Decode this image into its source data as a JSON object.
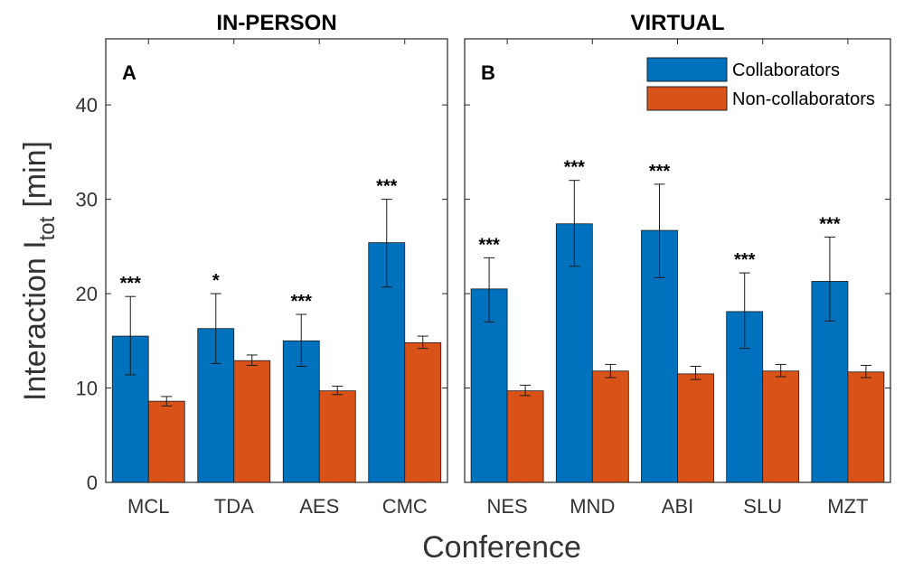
{
  "chart_data": {
    "type": "bar",
    "xlabel": "Conference",
    "ylabel": "Interaction I",
    "ylabel_sub": "tot",
    "ylabel_unit": "[min]",
    "ylim": [
      0,
      47
    ],
    "yticks": [
      "0",
      "10",
      "20",
      "30",
      "40"
    ],
    "colors": {
      "Collaborators": "#0072BD",
      "Non-collaborators": "#D95319"
    },
    "legend": {
      "placement": "top-right",
      "entries": [
        "Collaborators",
        "Non-collaborators"
      ]
    },
    "panels": [
      {
        "title": "IN-PERSON",
        "label": "A",
        "categories": [
          "MCL",
          "TDA",
          "AES",
          "CMC"
        ],
        "series": [
          {
            "name": "Collaborators",
            "values": [
              15.5,
              16.3,
              15.0,
              25.4
            ],
            "err_low": [
              11.4,
              12.6,
              12.3,
              20.7
            ],
            "err_high": [
              19.7,
              20.0,
              17.8,
              30.0
            ]
          },
          {
            "name": "Non-collaborators",
            "values": [
              8.6,
              12.9,
              9.7,
              14.8
            ],
            "err_low": [
              8.1,
              12.4,
              9.3,
              14.2
            ],
            "err_high": [
              9.1,
              13.5,
              10.2,
              15.5
            ]
          }
        ],
        "significance": [
          "***",
          "*",
          "***",
          "***"
        ]
      },
      {
        "title": "VIRTUAL",
        "label": "B",
        "categories": [
          "NES",
          "MND",
          "ABI",
          "SLU",
          "MZT"
        ],
        "series": [
          {
            "name": "Collaborators",
            "values": [
              20.5,
              27.4,
              26.7,
              18.1,
              21.3
            ],
            "err_low": [
              17.0,
              22.9,
              21.7,
              14.2,
              17.1
            ],
            "err_high": [
              23.8,
              32.0,
              31.6,
              22.2,
              26.0
            ]
          },
          {
            "name": "Non-collaborators",
            "values": [
              9.7,
              11.8,
              11.5,
              11.8,
              11.7
            ],
            "err_low": [
              9.2,
              11.1,
              10.9,
              11.2,
              11.1
            ],
            "err_high": [
              10.3,
              12.5,
              12.3,
              12.5,
              12.4
            ]
          }
        ],
        "significance": [
          "***",
          "***",
          "***",
          "***",
          "***"
        ]
      }
    ]
  }
}
